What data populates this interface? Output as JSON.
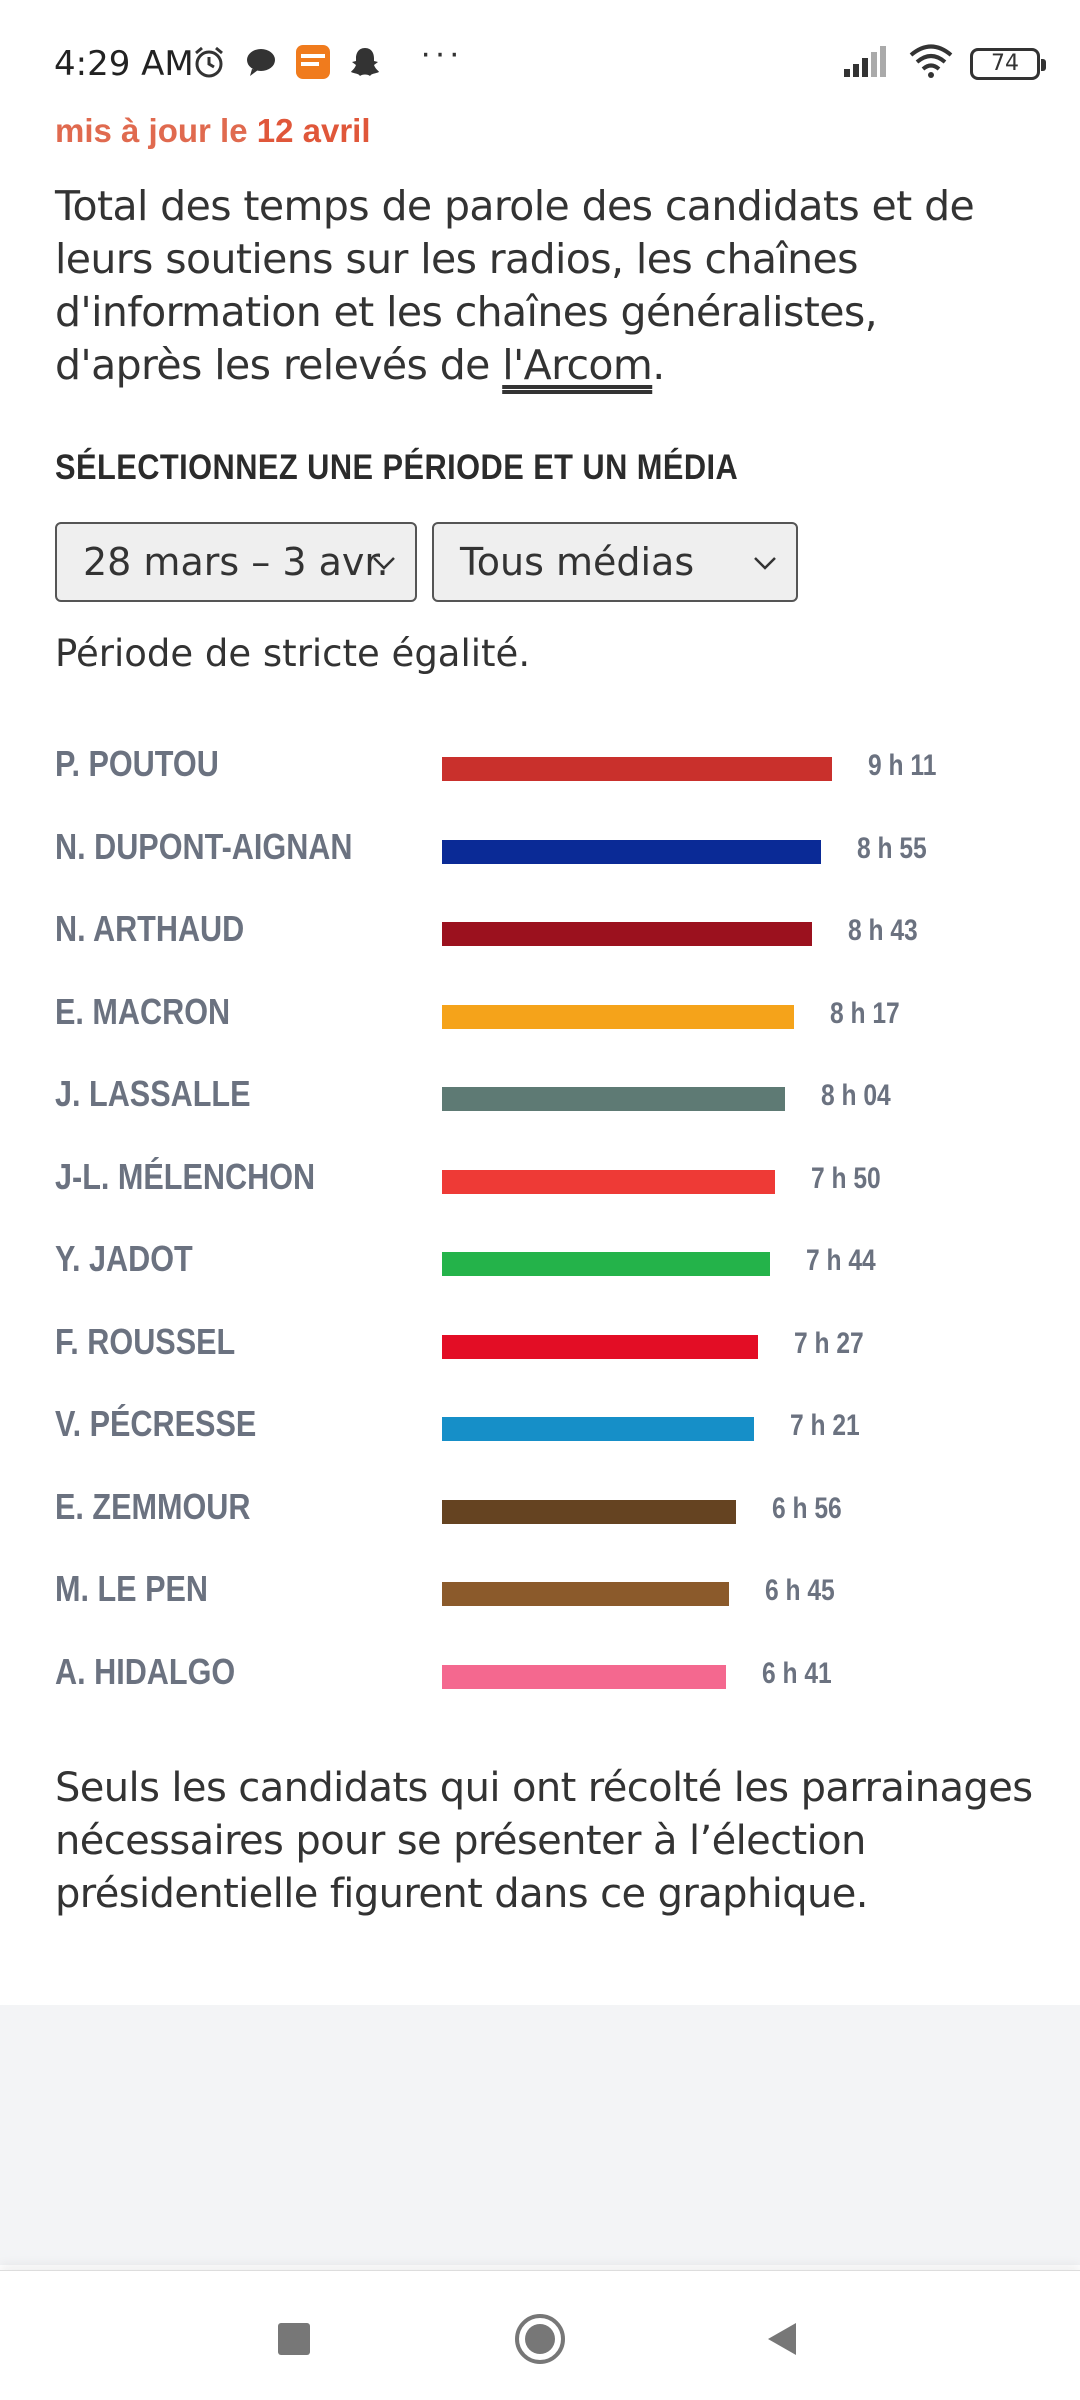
{
  "status_bar": {
    "time": "4:29 AM",
    "icons_left": [
      "alarm-icon",
      "chat-bubble-icon",
      "app-badge-icon",
      "snapchat-icon"
    ],
    "more": "···",
    "battery": "74",
    "icons_right": [
      "signal-icon",
      "wifi-icon",
      "battery-icon"
    ]
  },
  "header": {
    "updated_prefix": "mis à jour le ",
    "updated_date": "12 avril",
    "intro_text": "Total des temps de parole des candidats et de leurs soutiens sur les radios, les chaînes d'information et les chaînes généralistes, d'après les relevés de ",
    "intro_link": "l'Arcom",
    "intro_end": "."
  },
  "controls": {
    "heading": "SÉLECTIONNEZ UNE PÉRIODE ET UN MÉDIA",
    "period_value": "28 mars – 3 avr.",
    "media_value": "Tous médias"
  },
  "note": "Période de stricte égalité.",
  "chart_data": {
    "type": "bar",
    "orientation": "horizontal",
    "categories": [
      "P. POUTOU",
      "N. DUPONT-AIGNAN",
      "N. ARTHAUD",
      "E. MACRON",
      "J. LASSALLE",
      "J-L. MÉLENCHON",
      "Y. JADOT",
      "F. ROUSSEL",
      "V. PÉCRESSE",
      "E. ZEMMOUR",
      "M. LE PEN",
      "A. HIDALGO"
    ],
    "labels": [
      "9 h 11",
      "8 h 55",
      "8 h 43",
      "8 h 17",
      "8 h 04",
      "7 h 50",
      "7 h 44",
      "7 h 27",
      "7 h 21",
      "6 h 56",
      "6 h 45",
      "6 h 41"
    ],
    "values_minutes": [
      551,
      535,
      523,
      497,
      484,
      470,
      464,
      447,
      441,
      416,
      405,
      401
    ],
    "colors": [
      "#c9302c",
      "#0a2a96",
      "#9b111e",
      "#f5a31a",
      "#5e7a74",
      "#ee3a36",
      "#24b34a",
      "#e30d25",
      "#168fc8",
      "#654321",
      "#8b5a2b",
      "#f4688f"
    ],
    "xlim": [
      0,
      551
    ]
  },
  "footnote": "Seuls les candidats qui ont récolté les parrainages nécessaires pour se présenter à l’élection présidentielle figurent dans ce graphique.",
  "nav": {
    "buttons": [
      "recents-square-icon",
      "home-circle-icon",
      "back-triangle-icon"
    ]
  }
}
